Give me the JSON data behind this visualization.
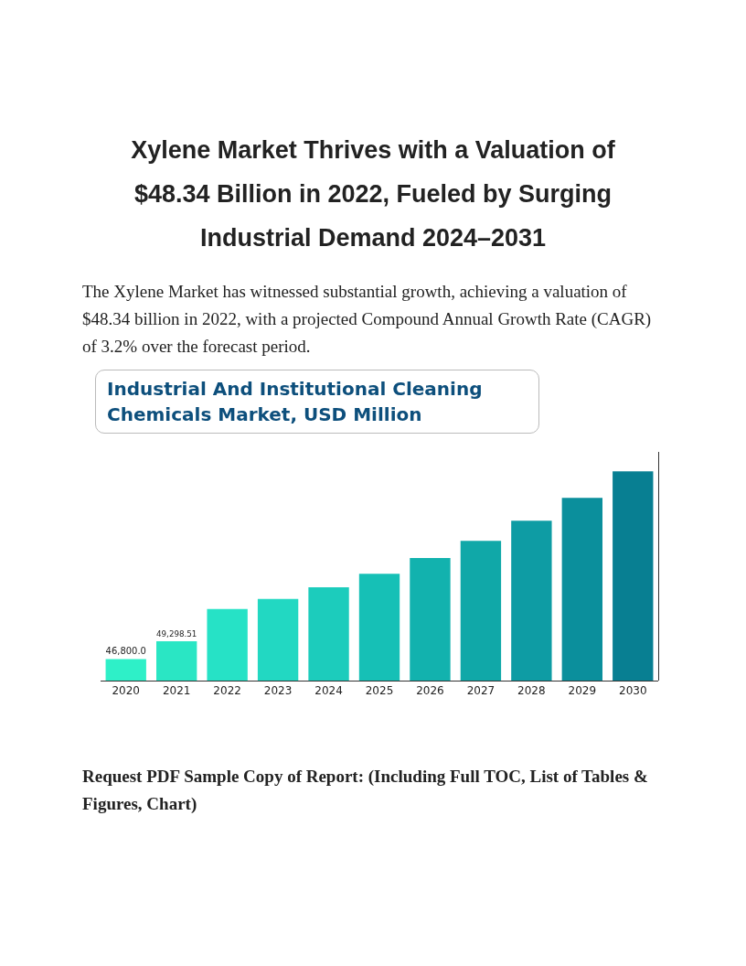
{
  "chart_data": {
    "type": "bar",
    "title": "Xylene Market Thrives with a Valuation of $48.34 Billion in 2022, Fueled by Surging Industrial Demand 2024–2031",
    "subtitle": "The Xylene Market has witnessed substantial growth, achieving a valuation of $48.34 billion in 2022, with a projected Compound Annual Growth Rate (CAGR) of 3.2% over the forecast period.",
    "annotations": [
      "Industrial And Institutional Cleaning Chemicals Market, USD Million",
      "Request PDF Sample Copy of Report: (Including Full TOC, List of Tables & Figures, Chart)"
    ],
    "categories": [
      "2020",
      "2021",
      "2022",
      "2023",
      "2024",
      "2025",
      "2026",
      "2027",
      "2028",
      "2029",
      "2030"
    ],
    "values": [
      46800.0,
      49298.51,
      53800,
      55200,
      56800,
      58700,
      60900,
      63300,
      66100,
      69300,
      73000
    ],
    "ylim": [
      43800,
      75700
    ],
    "tick_labels": "x",
    "value_labels": [
      "46,800.0",
      "49,298.51",
      null,
      null,
      null,
      null,
      null,
      null,
      null,
      null,
      null
    ],
    "colors": [
      "#2ef0c8",
      "#2ae6c4",
      "#26e2c6",
      "#22d8c2",
      "#1cccbc",
      "#16c0b6",
      "#12b2ae",
      "#10a8a8",
      "#0e9ca4",
      "#0b8f9c",
      "#087f92"
    ],
    "grid": false,
    "legend": false
  }
}
